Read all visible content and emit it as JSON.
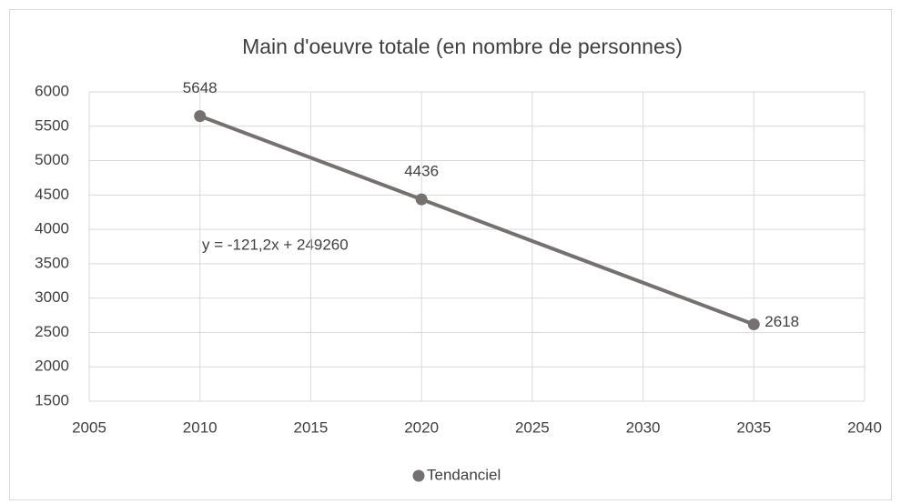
{
  "chart_data": {
    "type": "line",
    "title": "Main d'oeuvre totale (en nombre de personnes)",
    "x": [
      2010,
      2020,
      2035
    ],
    "series": [
      {
        "name": "Tendanciel",
        "color": "#767171",
        "values": [
          5648,
          4436,
          2618
        ]
      }
    ],
    "xlim": [
      2005,
      2040
    ],
    "xticks": [
      2005,
      2010,
      2015,
      2020,
      2025,
      2030,
      2035,
      2040
    ],
    "ylim": [
      1500,
      6000
    ],
    "yticks": [
      1500,
      2000,
      2500,
      3000,
      3500,
      4000,
      4500,
      5000,
      5500,
      6000
    ],
    "grid": true,
    "legend": "bottom",
    "data_labels": true,
    "annotation": "y = -121,2x + 249260"
  }
}
